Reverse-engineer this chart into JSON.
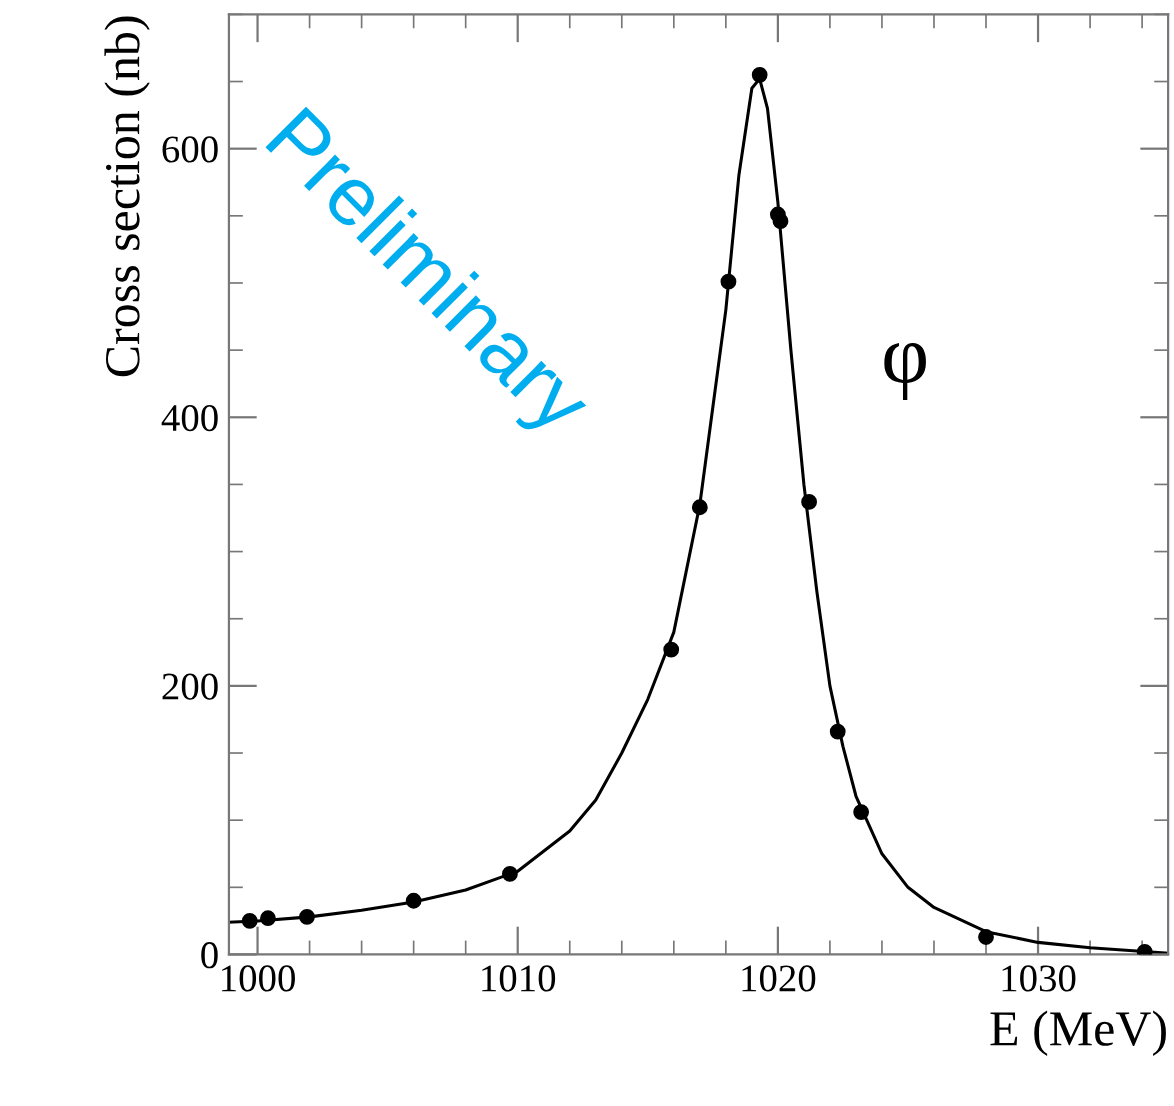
{
  "chart_data": {
    "type": "scatter",
    "xlabel": "E (MeV)",
    "ylabel": "Cross section (nb)",
    "xlim": [
      998.9,
      1035
    ],
    "ylim": [
      0,
      700
    ],
    "xticks": [
      1000,
      1010,
      1020,
      1030
    ],
    "yticks": [
      0,
      200,
      400,
      600
    ],
    "grid": false,
    "legend": false,
    "series": [
      {
        "color": "#000000",
        "marker": "circle",
        "x": [
          999.7,
          1000.4,
          1001.9,
          1006.0,
          1009.7,
          1015.9,
          1017.0,
          1018.1,
          1019.3,
          1020.0,
          1020.1,
          1021.2,
          1022.3,
          1023.2,
          1028.0,
          1034.1
        ],
        "values": [
          25,
          27,
          28,
          40,
          60,
          227,
          333,
          501,
          655,
          551,
          546,
          337,
          166,
          106,
          13,
          2
        ]
      },
      {
        "type": "line",
        "color": "#000000",
        "line_style": "solid",
        "marker": "none",
        "x": [
          998.9,
          1000,
          1002,
          1004,
          1006,
          1008,
          1010,
          1012,
          1013,
          1014,
          1015,
          1016,
          1017,
          1018,
          1018.5,
          1019,
          1019.3,
          1019.6,
          1020,
          1020.5,
          1021,
          1021.5,
          1022,
          1022.5,
          1023,
          1024,
          1025,
          1026,
          1028,
          1030,
          1032,
          1035
        ],
        "values": [
          24,
          25,
          28,
          33,
          39,
          48,
          62,
          92,
          115,
          150,
          190,
          240,
          335,
          480,
          580,
          645,
          652,
          630,
          560,
          450,
          350,
          270,
          200,
          155,
          118,
          75,
          50,
          35,
          17,
          9,
          5,
          1
        ]
      }
    ],
    "annotations": [
      "φ",
      "Preliminary"
    ]
  }
}
